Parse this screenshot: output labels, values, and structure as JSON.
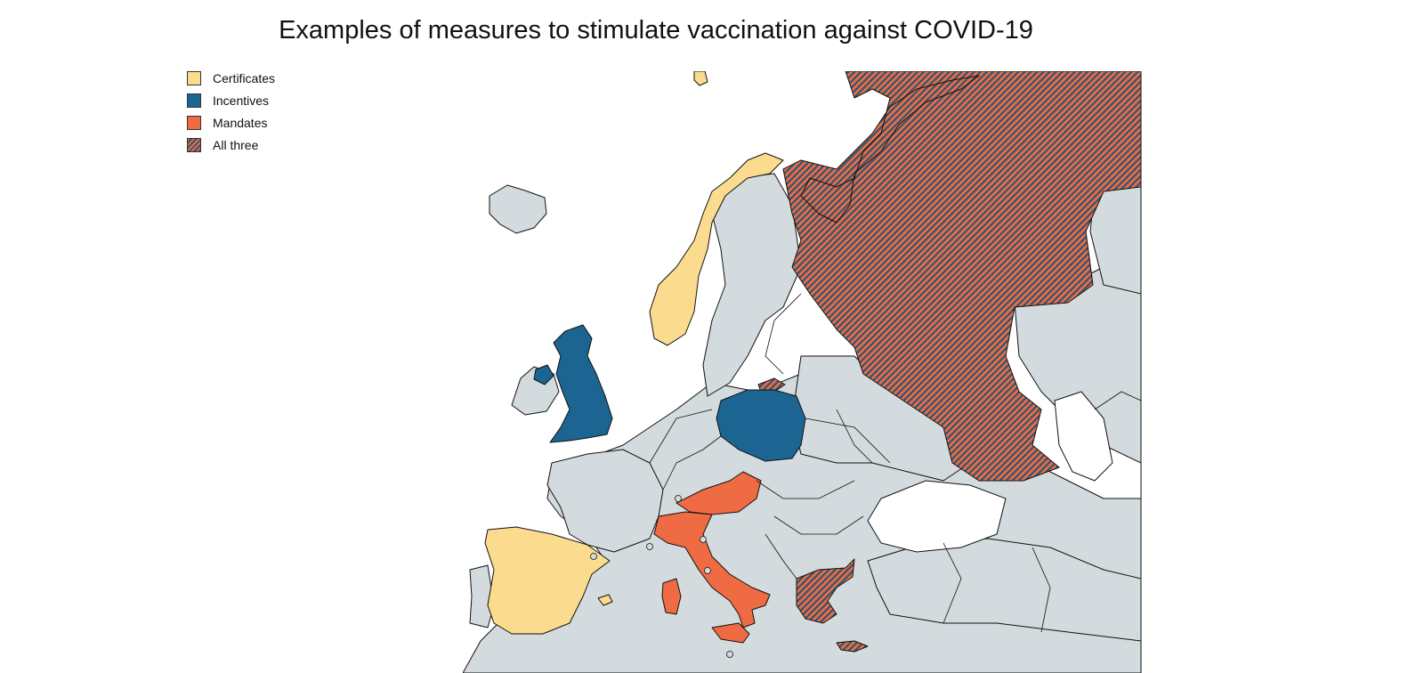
{
  "title": "Examples of measures to stimulate vaccination against COVID-19",
  "legend": [
    {
      "label": "Certificates",
      "color": "#fbdc8e",
      "pattern": false
    },
    {
      "label": "Incentives",
      "color": "#1c6592",
      "pattern": false
    },
    {
      "label": "Mandates",
      "color": "#ef6b43",
      "pattern": false
    },
    {
      "label": "All three",
      "color": "#c96d5e",
      "pattern": true
    }
  ],
  "colors": {
    "certificates": "#fbdc8e",
    "incentives": "#1c6592",
    "mandates": "#ef6b43",
    "all_three_stripe_a": "#ef6b43",
    "all_three_stripe_b": "#2b5673",
    "no_data": "#d3dbde",
    "sea": "#ffffff"
  },
  "countries": {
    "certificates": [
      "Norway",
      "Spain"
    ],
    "incentives": [
      "United Kingdom",
      "Poland"
    ],
    "mandates": [
      "Italy",
      "Austria"
    ],
    "all_three": [
      "Russia",
      "Greece"
    ]
  }
}
